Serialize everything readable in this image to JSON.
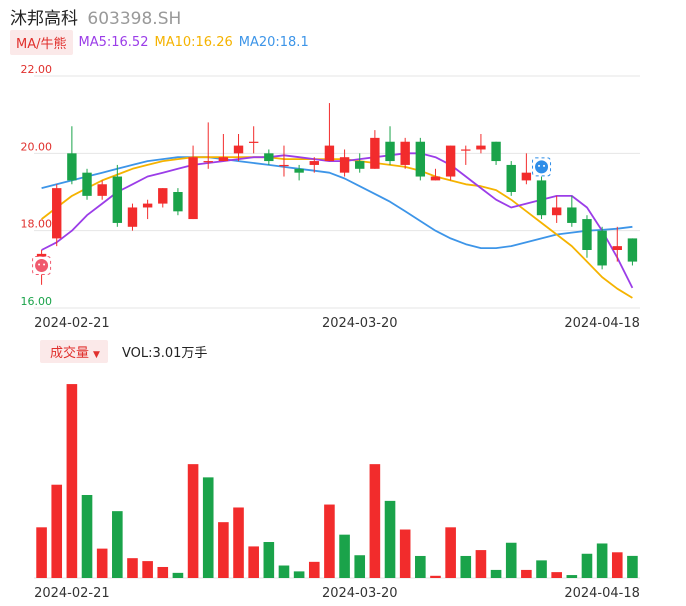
{
  "header": {
    "name": "沐邦高科",
    "code": "603398.SH"
  },
  "ma_legend": {
    "badge": "MA/牛熊",
    "items": [
      {
        "label": "MA5:16.52",
        "color": "#9b3de8"
      },
      {
        "label": "MA10:16.26",
        "color": "#f5b300"
      },
      {
        "label": "MA20:18.1",
        "color": "#3d95e8"
      }
    ]
  },
  "volume_legend": {
    "badge": "成交量",
    "text": "VOL:3.01万手"
  },
  "colors": {
    "up": "#f22c2c",
    "down": "#1aa34a",
    "grid": "#e6e6e6"
  },
  "icons": {
    "bull_marker": "bull-icon",
    "bear_marker": "bear-icon"
  },
  "chart_data": [
    {
      "type": "candlestick",
      "y_ticks": [
        "22.00",
        "20.00",
        "18.00",
        "16.00"
      ],
      "ylim": [
        16.0,
        22.0
      ],
      "x_ticks": [
        "2024-02-21",
        "2024-03-20",
        "2024-04-18"
      ],
      "candles": [
        {
          "o": 16.9,
          "c": 17.4,
          "h": 17.5,
          "l": 16.6
        },
        {
          "o": 17.8,
          "c": 19.1,
          "h": 19.2,
          "l": 17.6
        },
        {
          "o": 20.0,
          "c": 19.3,
          "h": 20.7,
          "l": 19.2
        },
        {
          "o": 19.5,
          "c": 18.9,
          "h": 19.6,
          "l": 18.8
        },
        {
          "o": 18.9,
          "c": 19.2,
          "h": 19.3,
          "l": 18.8
        },
        {
          "o": 19.4,
          "c": 18.2,
          "h": 19.7,
          "l": 18.1
        },
        {
          "o": 18.1,
          "c": 18.6,
          "h": 18.7,
          "l": 18.0
        },
        {
          "o": 18.6,
          "c": 18.7,
          "h": 18.8,
          "l": 18.3
        },
        {
          "o": 18.7,
          "c": 19.1,
          "h": 19.1,
          "l": 18.6
        },
        {
          "o": 19.0,
          "c": 18.5,
          "h": 19.1,
          "l": 18.4
        },
        {
          "o": 18.3,
          "c": 19.9,
          "h": 20.2,
          "l": 18.3
        },
        {
          "o": 19.8,
          "c": 19.8,
          "h": 20.8,
          "l": 19.6
        },
        {
          "o": 19.8,
          "c": 19.9,
          "h": 20.5,
          "l": 19.8
        },
        {
          "o": 20.0,
          "c": 20.2,
          "h": 20.5,
          "l": 19.8
        },
        {
          "o": 20.3,
          "c": 20.3,
          "h": 20.7,
          "l": 20.0
        },
        {
          "o": 20.0,
          "c": 19.8,
          "h": 20.1,
          "l": 19.7
        },
        {
          "o": 19.7,
          "c": 19.7,
          "h": 20.2,
          "l": 19.4
        },
        {
          "o": 19.6,
          "c": 19.5,
          "h": 19.7,
          "l": 19.3
        },
        {
          "o": 19.7,
          "c": 19.8,
          "h": 19.9,
          "l": 19.5
        },
        {
          "o": 19.8,
          "c": 20.2,
          "h": 21.3,
          "l": 19.8
        },
        {
          "o": 19.5,
          "c": 19.9,
          "h": 20.1,
          "l": 19.4
        },
        {
          "o": 19.8,
          "c": 19.6,
          "h": 20.0,
          "l": 19.5
        },
        {
          "o": 19.6,
          "c": 20.4,
          "h": 20.6,
          "l": 19.6
        },
        {
          "o": 20.3,
          "c": 19.8,
          "h": 20.7,
          "l": 19.7
        },
        {
          "o": 19.7,
          "c": 20.3,
          "h": 20.4,
          "l": 19.6
        },
        {
          "o": 20.3,
          "c": 19.4,
          "h": 20.4,
          "l": 19.3
        },
        {
          "o": 19.3,
          "c": 19.4,
          "h": 19.6,
          "l": 19.3
        },
        {
          "o": 19.4,
          "c": 20.2,
          "h": 20.2,
          "l": 19.3
        },
        {
          "o": 20.1,
          "c": 20.1,
          "h": 20.2,
          "l": 19.7
        },
        {
          "o": 20.1,
          "c": 20.2,
          "h": 20.5,
          "l": 20.0
        },
        {
          "o": 20.3,
          "c": 19.8,
          "h": 20.3,
          "l": 19.7
        },
        {
          "o": 19.7,
          "c": 19.0,
          "h": 19.8,
          "l": 18.9
        },
        {
          "o": 19.3,
          "c": 19.5,
          "h": 20.0,
          "l": 19.2
        },
        {
          "o": 19.3,
          "c": 18.4,
          "h": 19.4,
          "l": 18.3
        },
        {
          "o": 18.4,
          "c": 18.6,
          "h": 18.9,
          "l": 18.2
        },
        {
          "o": 18.6,
          "c": 18.2,
          "h": 18.9,
          "l": 18.1
        },
        {
          "o": 18.3,
          "c": 17.5,
          "h": 18.4,
          "l": 17.3
        },
        {
          "o": 18.0,
          "c": 17.1,
          "h": 18.1,
          "l": 17.0
        },
        {
          "o": 17.5,
          "c": 17.6,
          "h": 18.1,
          "l": 17.2
        },
        {
          "o": 17.8,
          "c": 17.2,
          "h": 17.8,
          "l": 17.1
        }
      ],
      "ma5": [
        17.5,
        17.7,
        18.0,
        18.4,
        18.7,
        19.0,
        19.2,
        19.4,
        19.5,
        19.6,
        19.7,
        19.75,
        19.8,
        19.85,
        19.9,
        19.9,
        19.95,
        19.9,
        19.85,
        19.8,
        19.8,
        19.85,
        19.9,
        19.95,
        20.0,
        20.0,
        19.9,
        19.7,
        19.4,
        19.1,
        18.8,
        18.6,
        18.7,
        18.8,
        18.9,
        18.9,
        18.6,
        18.0,
        17.3,
        16.52
      ],
      "ma10": [
        18.3,
        18.6,
        18.9,
        19.1,
        19.3,
        19.45,
        19.6,
        19.7,
        19.8,
        19.85,
        19.9,
        19.9,
        19.9,
        19.9,
        19.9,
        19.9,
        19.85,
        19.85,
        19.85,
        19.85,
        19.85,
        19.8,
        19.75,
        19.7,
        19.65,
        19.55,
        19.4,
        19.3,
        19.2,
        19.15,
        19.05,
        18.8,
        18.5,
        18.2,
        17.9,
        17.6,
        17.2,
        16.8,
        16.5,
        16.26
      ],
      "ma20": [
        19.1,
        19.2,
        19.3,
        19.4,
        19.5,
        19.6,
        19.7,
        19.8,
        19.85,
        19.9,
        19.9,
        19.9,
        19.85,
        19.8,
        19.75,
        19.7,
        19.65,
        19.6,
        19.55,
        19.5,
        19.35,
        19.15,
        18.95,
        18.75,
        18.5,
        18.25,
        18.0,
        17.8,
        17.65,
        17.55,
        17.55,
        17.6,
        17.7,
        17.8,
        17.9,
        17.95,
        18.0,
        18.02,
        18.05,
        18.1
      ],
      "markers": [
        {
          "index": 0,
          "price": 17.1,
          "icon": "bull-icon"
        },
        {
          "index": 33,
          "price": 19.65,
          "icon": "bear-icon"
        }
      ]
    },
    {
      "type": "bar",
      "title": "成交量",
      "unit": "万手",
      "last_value": 3.01,
      "values": [
        6.9,
        12.7,
        26.4,
        11.3,
        4.0,
        9.1,
        2.7,
        2.3,
        1.5,
        0.7,
        15.5,
        13.7,
        7.6,
        9.6,
        4.3,
        4.9,
        1.7,
        0.9,
        2.2,
        10.0,
        5.9,
        3.1,
        15.5,
        10.5,
        6.6,
        3.0,
        0.3,
        6.9,
        3.0,
        3.8,
        1.1,
        4.8,
        1.1,
        2.4,
        0.8,
        0.4,
        3.3,
        4.7,
        3.5,
        3.01
      ],
      "up": [
        true,
        true,
        true,
        false,
        true,
        false,
        true,
        true,
        true,
        false,
        true,
        false,
        true,
        true,
        true,
        false,
        false,
        false,
        true,
        true,
        false,
        false,
        true,
        false,
        true,
        false,
        true,
        true,
        false,
        true,
        false,
        false,
        true,
        false,
        true,
        false,
        false,
        false,
        true,
        false
      ]
    }
  ]
}
